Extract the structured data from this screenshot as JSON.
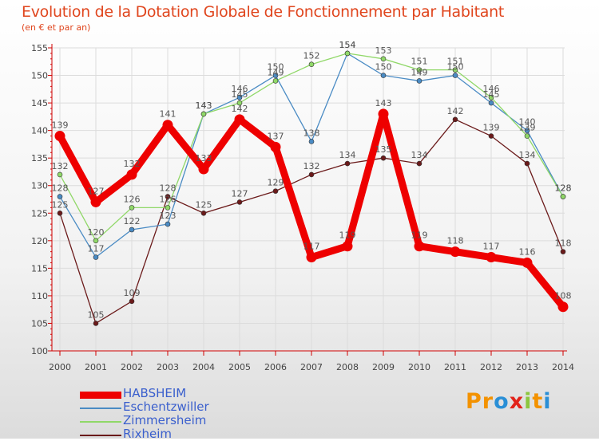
{
  "header": {
    "title": "Evolution de la Dotation Globale de Fonctionnement par Habitant",
    "subtitle": "(en € et par an)"
  },
  "logo": {
    "text": "Proxiti",
    "colors": [
      "#f39200",
      "#f39200",
      "#2a8fd6",
      "#e2231a",
      "#8cc63f",
      "#f39200",
      "#2a8fd6"
    ]
  },
  "colors": {
    "title": "#e0461e",
    "axis": "#d00000",
    "grid": "#dcdcdc"
  },
  "chart_data": {
    "type": "line",
    "title": "Evolution de la Dotation Globale de Fonctionnement par Habitant",
    "subtitle": "(en € et par an)",
    "xlabel": "",
    "ylabel": "",
    "ylim": [
      100,
      155
    ],
    "yticks": [
      100,
      105,
      110,
      115,
      120,
      125,
      130,
      135,
      140,
      145,
      150,
      155
    ],
    "x": [
      2000,
      2001,
      2002,
      2003,
      2004,
      2005,
      2006,
      2007,
      2008,
      2009,
      2010,
      2011,
      2012,
      2013,
      2014
    ],
    "grid": true,
    "legend_position": "bottom-left",
    "series": [
      {
        "name": "Rixheim",
        "color": "#6b1a1a",
        "bold": false,
        "values": [
          125,
          105,
          109,
          128,
          125,
          127,
          129,
          132,
          134,
          135,
          134,
          142,
          139,
          134,
          118
        ]
      },
      {
        "name": "Eschentzwiller",
        "color": "#4a8bc4",
        "bold": false,
        "values": [
          128,
          117,
          122,
          123,
          143,
          146,
          150,
          138,
          154,
          150,
          149,
          150,
          145,
          140,
          128
        ]
      },
      {
        "name": "Zimmersheim",
        "color": "#90d868",
        "bold": false,
        "values": [
          132,
          120,
          126,
          126,
          143,
          145,
          149,
          152,
          154,
          153,
          151,
          151,
          146,
          139,
          128
        ]
      },
      {
        "name": "HABSHEIM",
        "color": "#ee0000",
        "bold": true,
        "values": [
          139,
          127,
          132,
          141,
          133,
          142,
          137,
          117,
          119,
          143,
          119,
          118,
          117,
          116,
          108
        ]
      }
    ],
    "legend_order": [
      "HABSHEIM",
      "Eschentzwiller",
      "Zimmersheim",
      "Rixheim"
    ]
  }
}
